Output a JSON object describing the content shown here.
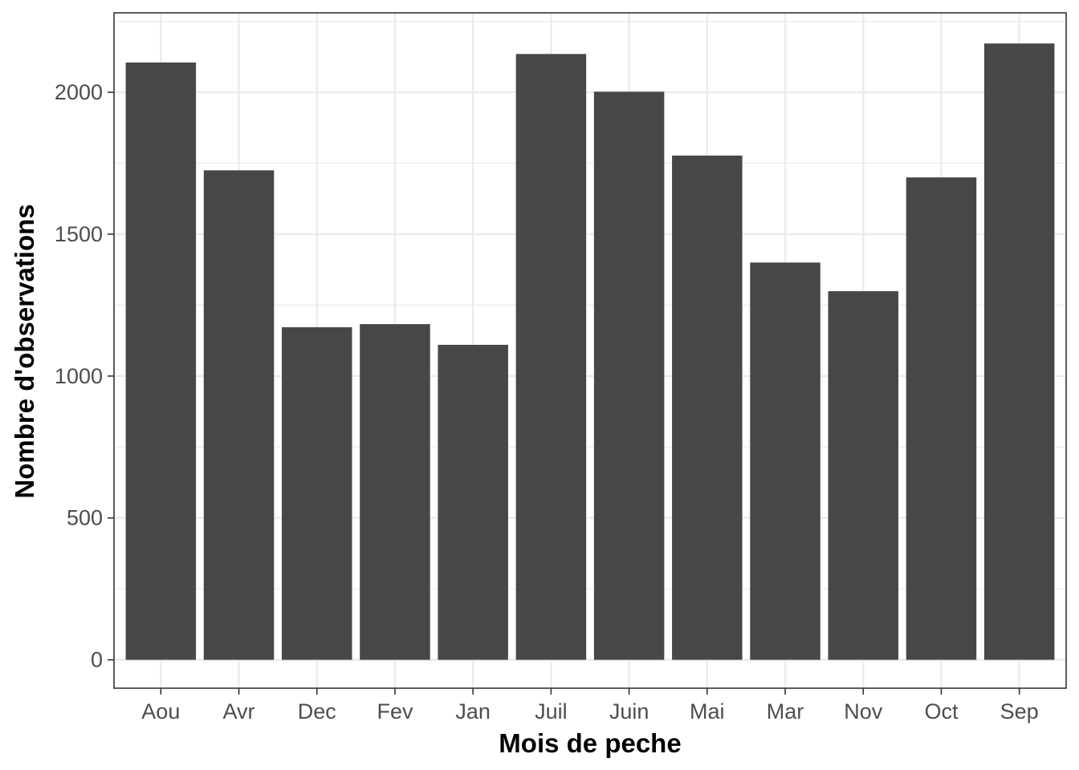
{
  "chart_data": {
    "type": "bar",
    "title": "",
    "xlabel": "Mois de peche",
    "ylabel": "Nombre d'observations",
    "categories": [
      "Aou",
      "Avr",
      "Dec",
      "Fev",
      "Jan",
      "Juil",
      "Juin",
      "Mai",
      "Mar",
      "Nov",
      "Oct",
      "Sep"
    ],
    "values": [
      2105,
      1725,
      1172,
      1183,
      1110,
      2135,
      2002,
      1777,
      1400,
      1299,
      1700,
      2172
    ],
    "yticks": [
      "0",
      "500",
      "1000",
      "1500",
      "2000"
    ],
    "ylim": [
      -100,
      2280
    ],
    "grid": true,
    "legend": "none",
    "colors": {
      "bar": "#474747",
      "grid": "#ebebeb",
      "panel_border": "#333333",
      "background": "#ffffff"
    }
  }
}
